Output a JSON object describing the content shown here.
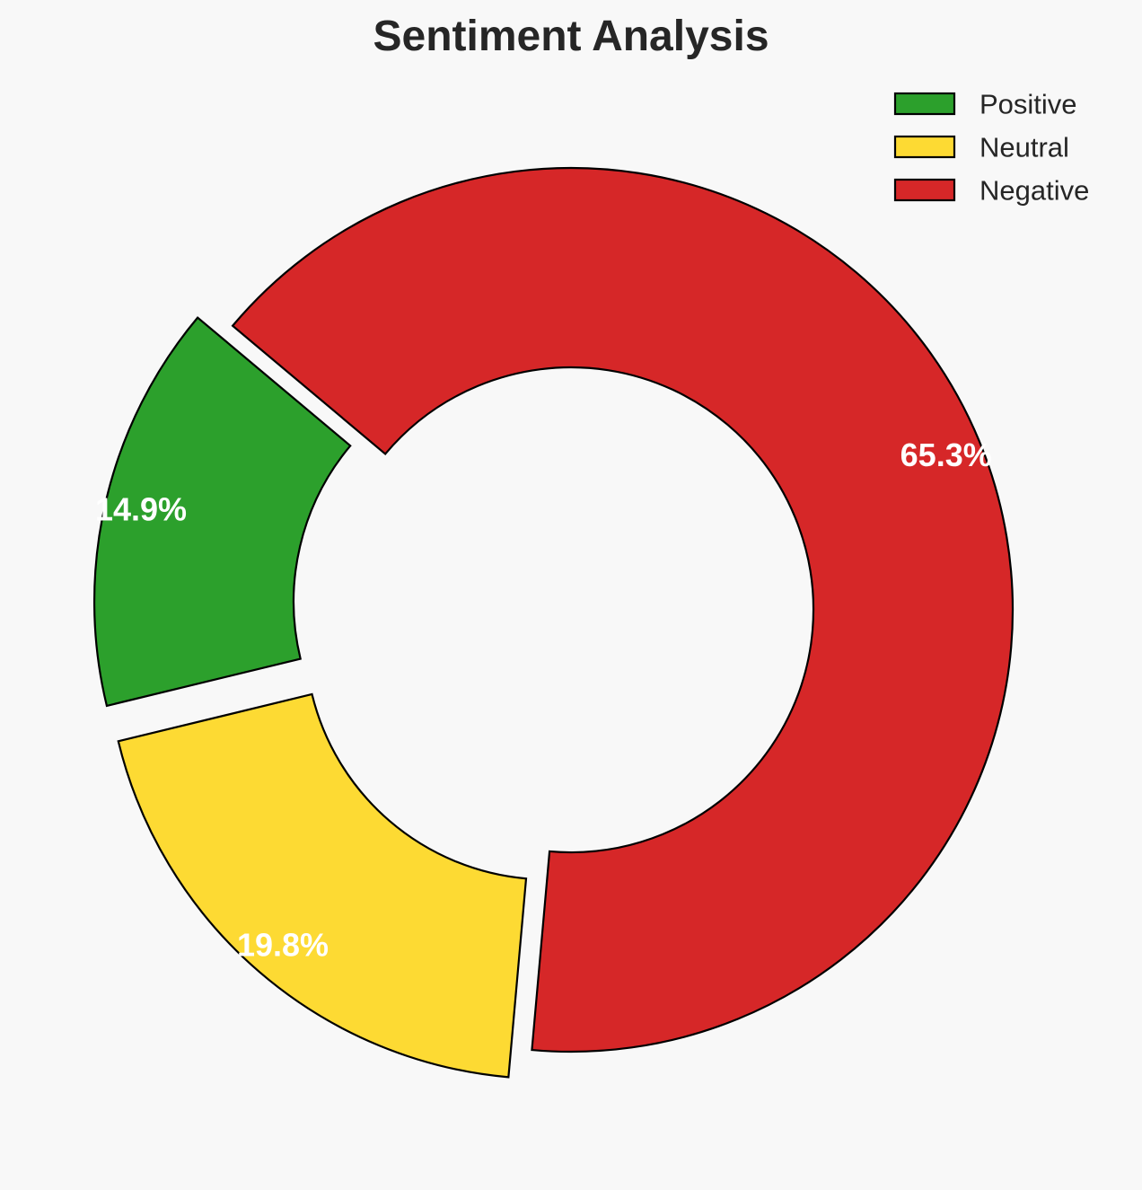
{
  "chart_data": {
    "type": "pie",
    "variant": "donut",
    "title": "Sentiment Analysis",
    "categories": [
      "Positive",
      "Neutral",
      "Negative"
    ],
    "values": [
      14.9,
      19.8,
      65.3
    ],
    "labels": [
      "14.9%",
      "19.8%",
      "65.3%"
    ],
    "colors": [
      "#2ca02c",
      "#fdda33",
      "#d62728"
    ],
    "exploded": [
      true,
      true,
      false
    ],
    "legend_position": "top-right",
    "grid": false
  }
}
